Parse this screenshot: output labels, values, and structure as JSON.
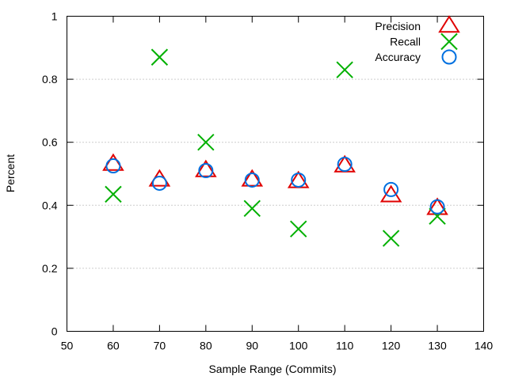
{
  "chart_data": {
    "type": "scatter",
    "xlabel": "Sample Range (Commits)",
    "ylabel": "Percent",
    "xlim": [
      50,
      140
    ],
    "ylim": [
      0,
      1
    ],
    "xticks": [
      50,
      60,
      70,
      80,
      90,
      100,
      110,
      120,
      130,
      140
    ],
    "yticks": [
      0,
      0.2,
      0.4,
      0.6,
      0.8,
      1
    ],
    "xtick_labels": [
      "50",
      "60",
      "70",
      "80",
      "90",
      "100",
      "110",
      "120",
      "130",
      "140"
    ],
    "ytick_labels": [
      "0",
      "0.2",
      "0.4",
      "0.6",
      "0.8",
      "1"
    ],
    "grid": "horizontal dotted",
    "legend_position": "top-right",
    "series": [
      {
        "name": "Precision",
        "marker": "triangle",
        "color": "#e00000",
        "x": [
          60,
          70,
          80,
          90,
          100,
          110,
          120,
          130
        ],
        "y": [
          0.53,
          0.48,
          0.51,
          0.48,
          0.475,
          0.525,
          0.43,
          0.39
        ]
      },
      {
        "name": "Recall",
        "marker": "x",
        "color": "#00b000",
        "x": [
          60,
          70,
          80,
          90,
          100,
          110,
          120,
          130
        ],
        "y": [
          0.435,
          0.87,
          0.6,
          0.39,
          0.325,
          0.83,
          0.295,
          0.365
        ]
      },
      {
        "name": "Accuracy",
        "marker": "circle",
        "color": "#0070e0",
        "x": [
          60,
          70,
          80,
          90,
          100,
          110,
          120,
          130
        ],
        "y": [
          0.525,
          0.47,
          0.51,
          0.48,
          0.48,
          0.53,
          0.45,
          0.395
        ]
      }
    ]
  }
}
